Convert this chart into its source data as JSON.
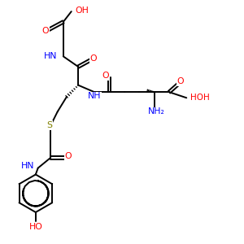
{
  "bg": "#ffffff",
  "bc": "#000000",
  "red": "#ff0000",
  "blue": "#0000ff",
  "olive": "#808000",
  "lw": 1.4,
  "figsize": [
    3.0,
    3.0
  ],
  "dpi": 100,
  "xlim": [
    0.0,
    9.5
  ],
  "ylim": [
    0.0,
    10.5
  ]
}
